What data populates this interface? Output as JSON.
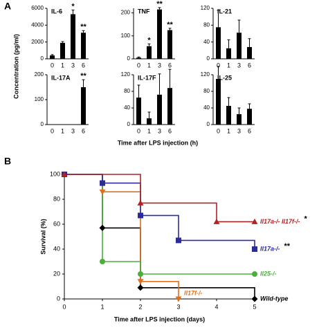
{
  "panel_a": {
    "label": "A",
    "y_label": "Concentration (pg/ml)",
    "x_label": "Time after LPS injection (h)"
  },
  "panel_b": {
    "label": "B"
  },
  "chart_data": [
    {
      "type": "bar",
      "title": "IL-6",
      "categories": [
        "0",
        "1",
        "3",
        "6"
      ],
      "values": [
        400,
        1900,
        5300,
        3100
      ],
      "errors": [
        100,
        150,
        500,
        250
      ],
      "significance": [
        null,
        null,
        "*",
        "**"
      ],
      "color": "#000000",
      "ylim": [
        0,
        6000
      ],
      "yticks": [
        0,
        2000,
        4000,
        6000
      ]
    },
    {
      "type": "bar",
      "title": "TNF",
      "categories": [
        "0",
        "1",
        "3",
        "6"
      ],
      "values": [
        5,
        55,
        215,
        125
      ],
      "errors": [
        3,
        10,
        8,
        8
      ],
      "significance": [
        null,
        "*",
        "**",
        "**"
      ],
      "color": "#000000",
      "ylim": [
        0,
        220
      ],
      "yticks": [
        0,
        100,
        200
      ]
    },
    {
      "type": "bar",
      "title": "IL-21",
      "categories": [
        "0",
        "1",
        "3",
        "6"
      ],
      "values": [
        75,
        25,
        62,
        28
      ],
      "errors": [
        40,
        20,
        30,
        20
      ],
      "significance": [
        null,
        null,
        null,
        null
      ],
      "color": "#000000",
      "ylim": [
        0,
        120
      ],
      "yticks": [
        0,
        40,
        80,
        120
      ]
    },
    {
      "type": "bar",
      "title": "IL-17A",
      "categories": [
        "0",
        "1",
        "3",
        "6"
      ],
      "values": [
        0,
        0,
        0,
        150
      ],
      "errors": [
        0,
        0,
        0,
        30
      ],
      "significance": [
        null,
        null,
        null,
        "**"
      ],
      "color": "#000000",
      "ylim": [
        0,
        200
      ],
      "yticks": [
        0,
        100,
        200
      ]
    },
    {
      "type": "bar",
      "title": "IL-17F",
      "categories": [
        "0",
        "1",
        "3",
        "6"
      ],
      "values": [
        65,
        15,
        72,
        88
      ],
      "errors": [
        30,
        15,
        50,
        45
      ],
      "significance": [
        null,
        null,
        null,
        null
      ],
      "color": "#000000",
      "ylim": [
        0,
        120
      ],
      "yticks": [
        0,
        40,
        80,
        120
      ]
    },
    {
      "type": "bar",
      "title": "IL-25",
      "categories": [
        "0",
        "1",
        "3",
        "6"
      ],
      "values": [
        110,
        45,
        25,
        38
      ],
      "errors": [
        30,
        20,
        15,
        12
      ],
      "significance": [
        null,
        null,
        null,
        null
      ],
      "color": "#000000",
      "ylim": [
        0,
        120
      ],
      "yticks": [
        0,
        40,
        80,
        120
      ]
    },
    {
      "type": "survival",
      "x_label": "Time after LPS injection (days)",
      "y_label": "Survival (%)",
      "xlim": [
        0,
        5
      ],
      "xticks": [
        0,
        1,
        2,
        3,
        4,
        5
      ],
      "ylim": [
        0,
        100
      ],
      "yticks": [
        0,
        20,
        40,
        60,
        80,
        100
      ],
      "series": [
        {
          "name": "Il17a-/- Il17f-/-",
          "significance": "*",
          "color": "#b22222",
          "marker": "triangle",
          "x": [
            0,
            2,
            4,
            5
          ],
          "values": [
            100,
            77,
            62,
            62
          ]
        },
        {
          "name": "Il17a-/-",
          "significance": "**",
          "color": "#2b2b9a",
          "marker": "square",
          "x": [
            0,
            1,
            2,
            3,
            5
          ],
          "values": [
            100,
            93,
            67,
            47,
            40
          ]
        },
        {
          "name": "Il25-/-",
          "color": "#4caf3c",
          "marker": "circle",
          "x": [
            0,
            1,
            2,
            5
          ],
          "values": [
            100,
            30,
            20,
            20
          ]
        },
        {
          "name": "Il17f-/-",
          "color": "#e0701e",
          "marker": "triangle-down",
          "x": [
            0,
            1,
            2,
            3
          ],
          "values": [
            100,
            86,
            14,
            0
          ]
        },
        {
          "name": "Wild-type",
          "color": "#000000",
          "marker": "diamond",
          "x": [
            0,
            1,
            2,
            5
          ],
          "values": [
            100,
            57,
            9,
            0
          ]
        }
      ]
    }
  ]
}
